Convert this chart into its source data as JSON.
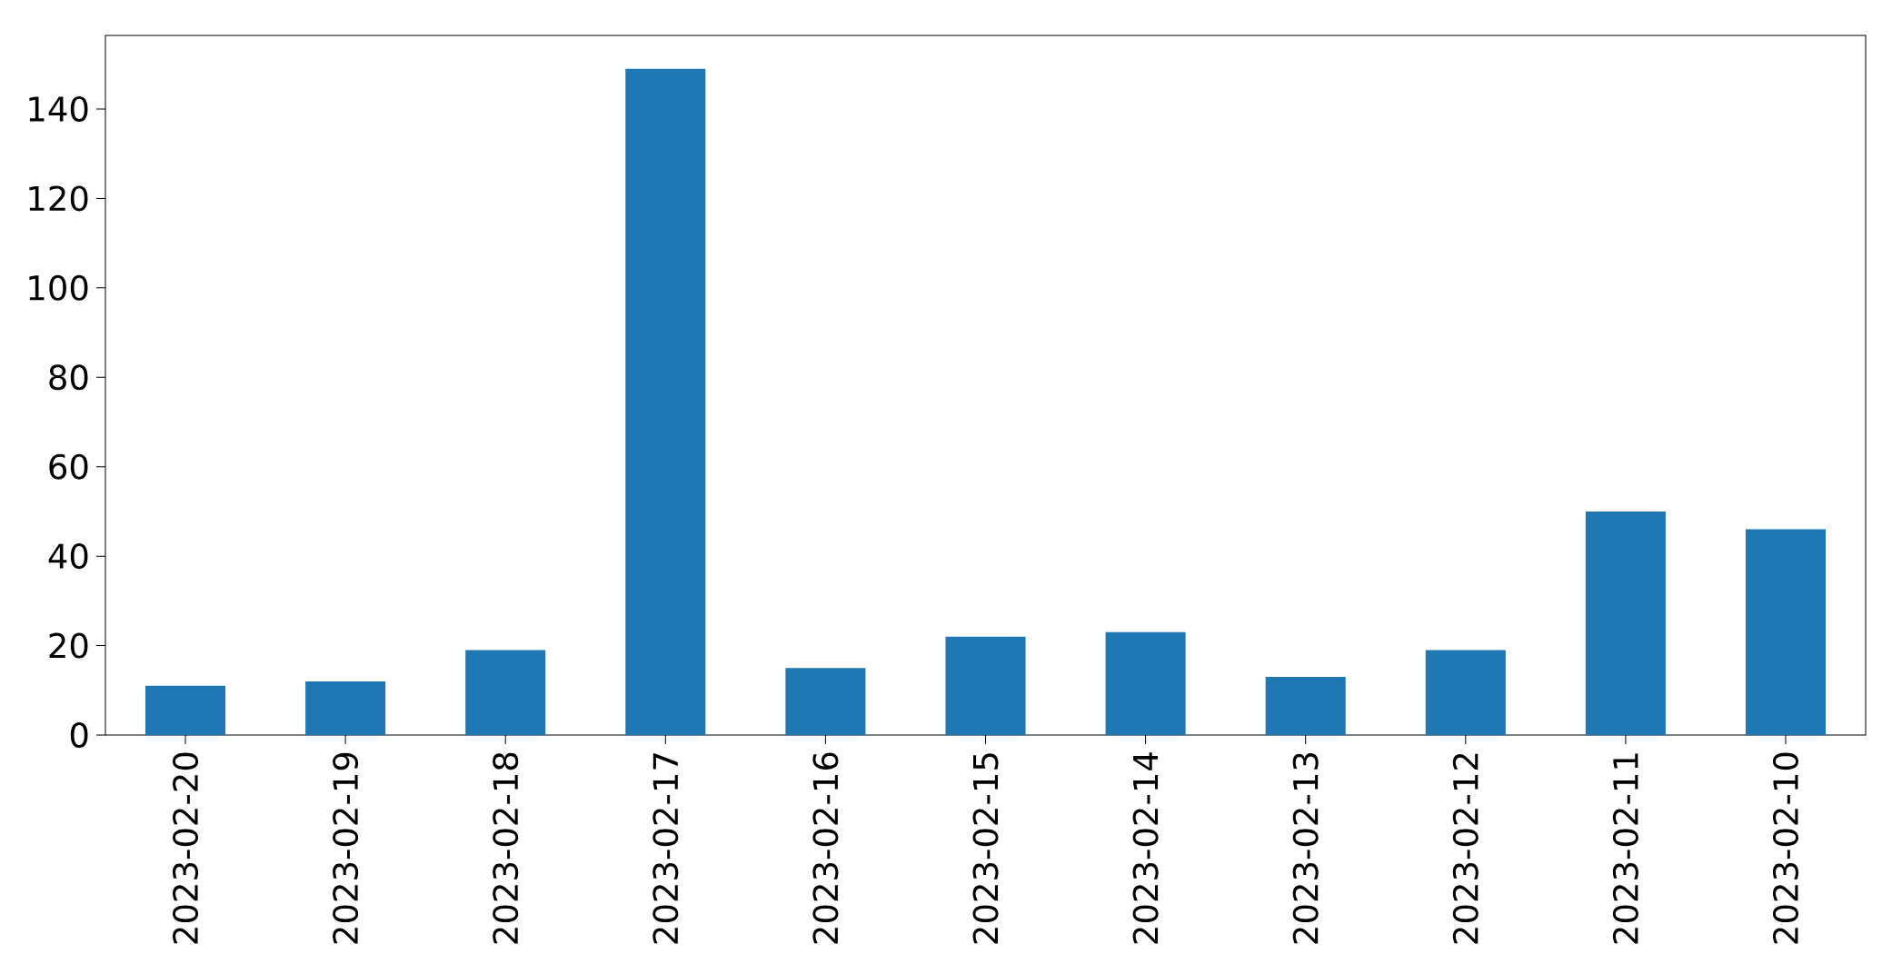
{
  "chart_data": {
    "type": "bar",
    "categories": [
      "2023-02-20",
      "2023-02-19",
      "2023-02-18",
      "2023-02-17",
      "2023-02-16",
      "2023-02-15",
      "2023-02-14",
      "2023-02-13",
      "2023-02-12",
      "2023-02-11",
      "2023-02-10"
    ],
    "values": [
      11,
      12,
      19,
      149,
      15,
      22,
      23,
      13,
      19,
      50,
      46
    ],
    "color": "#1f77b4",
    "ylim": [
      0,
      156.45
    ],
    "yticks": [
      0,
      20,
      40,
      60,
      80,
      100,
      120,
      140
    ]
  }
}
